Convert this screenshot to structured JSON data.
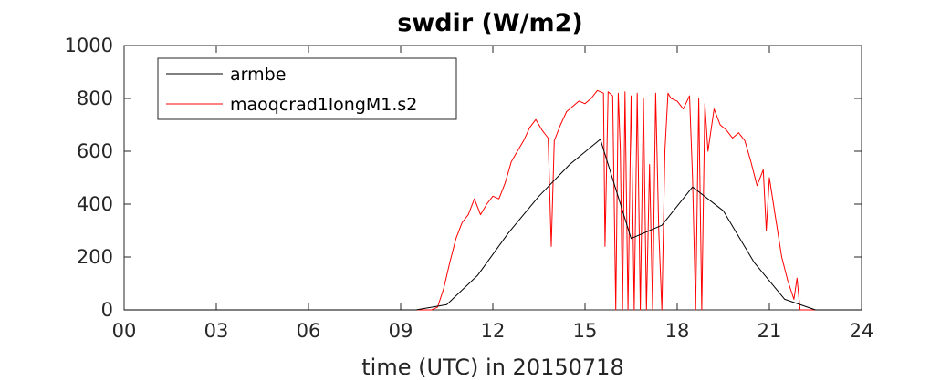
{
  "chart_data": {
    "type": "line",
    "title": "swdir  (W/m2)",
    "xlabel": "time (UTC) in 20150718",
    "ylabel": "",
    "xlim": [
      0,
      24
    ],
    "ylim": [
      0,
      1000
    ],
    "xticks": [
      0,
      3,
      6,
      9,
      12,
      15,
      18,
      21,
      24
    ],
    "xtick_labels": [
      "00",
      "03",
      "06",
      "09",
      "12",
      "15",
      "18",
      "21",
      "24"
    ],
    "yticks": [
      0,
      200,
      400,
      600,
      800,
      1000
    ],
    "ytick_labels": [
      "0",
      "200",
      "400",
      "600",
      "800",
      "1000"
    ],
    "grid": false,
    "legend_position": "top-left",
    "series": [
      {
        "name": "armbe",
        "color": "#000000",
        "points": [
          [
            0,
            0
          ],
          [
            1.5,
            0
          ],
          [
            3,
            0
          ],
          [
            4.5,
            0
          ],
          [
            6,
            0
          ],
          [
            7.5,
            0
          ],
          [
            9,
            0
          ],
          [
            9.5,
            0
          ],
          [
            10.5,
            20
          ],
          [
            11.5,
            130
          ],
          [
            12.5,
            290
          ],
          [
            13.5,
            430
          ],
          [
            14.5,
            550
          ],
          [
            15.5,
            645
          ],
          [
            16.5,
            270
          ],
          [
            17.5,
            320
          ],
          [
            18.5,
            465
          ],
          [
            19.5,
            375
          ],
          [
            20.5,
            180
          ],
          [
            21.5,
            40
          ],
          [
            22.5,
            0
          ],
          [
            23.5,
            0
          ],
          [
            24,
            0
          ]
        ]
      },
      {
        "name": "maoqcrad1longM1.s2",
        "color": "#ff0000",
        "points": [
          [
            0,
            0
          ],
          [
            10.0,
            0
          ],
          [
            10.2,
            10
          ],
          [
            10.4,
            80
          ],
          [
            10.6,
            180
          ],
          [
            10.8,
            270
          ],
          [
            11.0,
            330
          ],
          [
            11.2,
            360
          ],
          [
            11.4,
            420
          ],
          [
            11.6,
            360
          ],
          [
            11.8,
            400
          ],
          [
            12.0,
            430
          ],
          [
            12.2,
            420
          ],
          [
            12.4,
            480
          ],
          [
            12.6,
            560
          ],
          [
            12.8,
            600
          ],
          [
            13.0,
            640
          ],
          [
            13.2,
            690
          ],
          [
            13.4,
            720
          ],
          [
            13.6,
            680
          ],
          [
            13.8,
            650
          ],
          [
            13.9,
            240
          ],
          [
            14.0,
            640
          ],
          [
            14.2,
            700
          ],
          [
            14.4,
            750
          ],
          [
            14.6,
            770
          ],
          [
            14.8,
            790
          ],
          [
            15.0,
            780
          ],
          [
            15.2,
            800
          ],
          [
            15.4,
            830
          ],
          [
            15.6,
            820
          ],
          [
            15.65,
            240
          ],
          [
            15.75,
            825
          ],
          [
            15.9,
            810
          ],
          [
            16.0,
            0
          ],
          [
            16.08,
            820
          ],
          [
            16.15,
            600
          ],
          [
            16.22,
            0
          ],
          [
            16.3,
            825
          ],
          [
            16.4,
            0
          ],
          [
            16.5,
            810
          ],
          [
            16.6,
            0
          ],
          [
            16.7,
            820
          ],
          [
            16.8,
            0
          ],
          [
            16.9,
            800
          ],
          [
            17.0,
            0
          ],
          [
            17.1,
            550
          ],
          [
            17.2,
            0
          ],
          [
            17.3,
            820
          ],
          [
            17.4,
            300
          ],
          [
            17.5,
            0
          ],
          [
            17.6,
            600
          ],
          [
            17.7,
            820
          ],
          [
            17.8,
            800
          ],
          [
            18.0,
            790
          ],
          [
            18.2,
            760
          ],
          [
            18.4,
            810
          ],
          [
            18.5,
            500
          ],
          [
            18.6,
            0
          ],
          [
            18.7,
            800
          ],
          [
            18.8,
            0
          ],
          [
            18.9,
            780
          ],
          [
            19.0,
            600
          ],
          [
            19.2,
            760
          ],
          [
            19.4,
            700
          ],
          [
            19.6,
            680
          ],
          [
            19.8,
            650
          ],
          [
            20.0,
            670
          ],
          [
            20.2,
            640
          ],
          [
            20.4,
            560
          ],
          [
            20.6,
            470
          ],
          [
            20.8,
            530
          ],
          [
            20.9,
            300
          ],
          [
            21.0,
            500
          ],
          [
            21.2,
            350
          ],
          [
            21.4,
            200
          ],
          [
            21.6,
            110
          ],
          [
            21.8,
            40
          ],
          [
            21.9,
            120
          ],
          [
            22.0,
            0
          ],
          [
            24,
            0
          ]
        ]
      }
    ]
  }
}
